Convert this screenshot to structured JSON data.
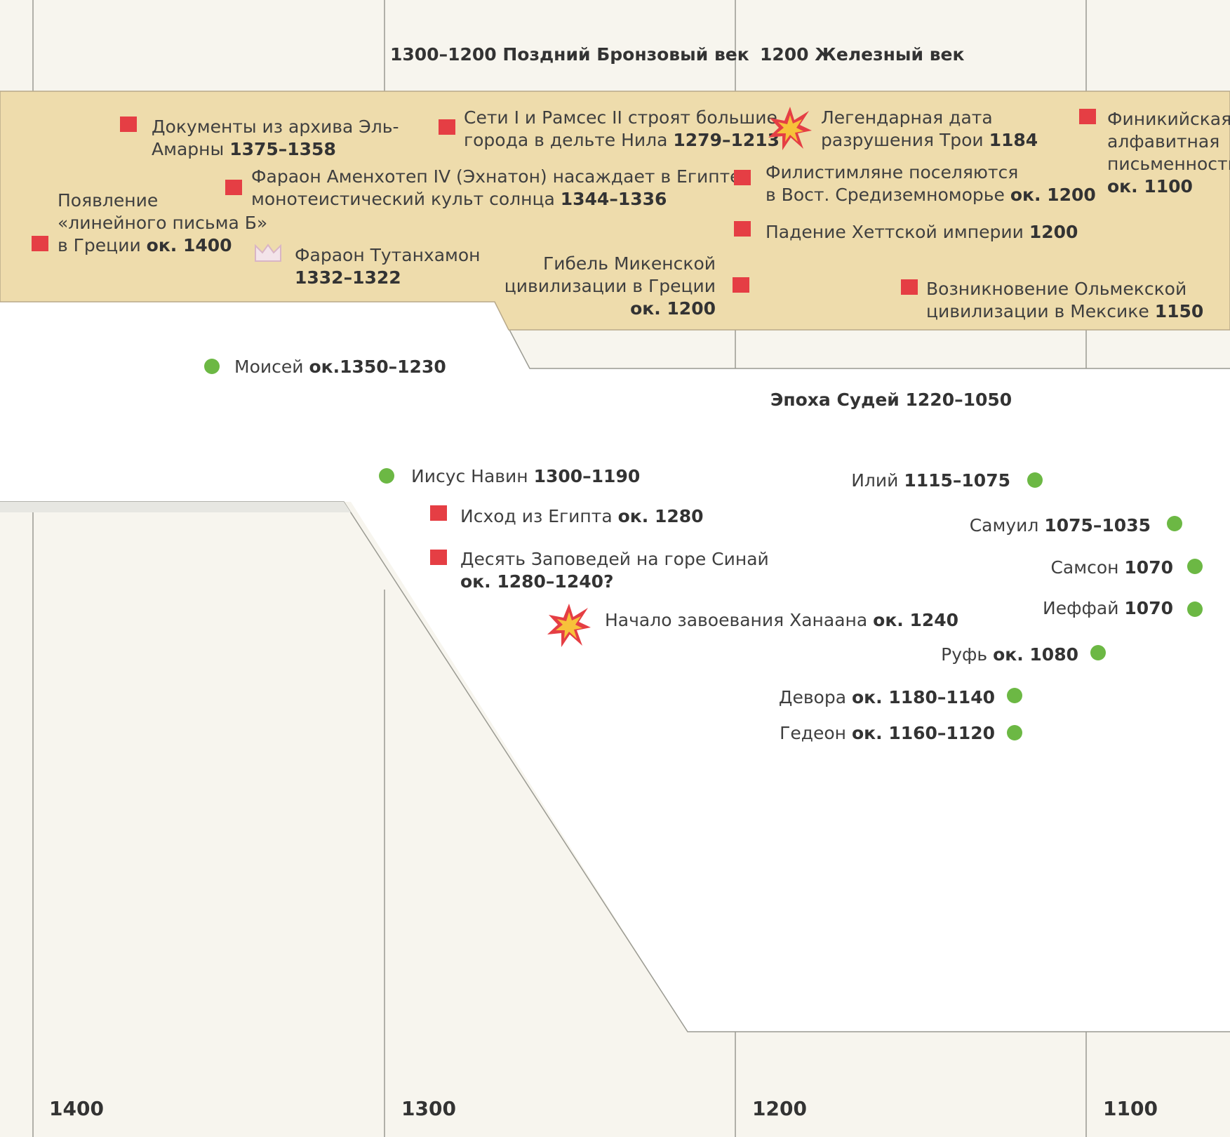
{
  "eras": {
    "late_bronze": "1300–1200 Поздний Бронзовый век",
    "iron": "1200 Железный век",
    "judges": "Эпоха Судей 1220–1050"
  },
  "axis_years": [
    "1400",
    "1300",
    "1200",
    "1100"
  ],
  "world_events": {
    "linear_b": {
      "line1": "Появление",
      "line2": "«линейного письма Б»",
      "line3": "в Греции ",
      "date": "ок. 1400"
    },
    "amarna": {
      "line1": "Документы из архива Эль-",
      "line2": "Амарны ",
      "date": "1375–1358"
    },
    "akhenaten": {
      "line1": "Фараон Аменхотеп IV (Эхнатон) насаждает в Египте",
      "line2": "монотеистический культ солнца ",
      "date": "1344–1336"
    },
    "tutankhamun": {
      "line1": "Фараон Тутанхамон",
      "date": "1332–1322"
    },
    "seti": {
      "line1": "Сети I и Рамсес II строят большие",
      "line2": "города в дельте Нила ",
      "date": "1279–1213"
    },
    "mycenae": {
      "line1": "Гибель Микенской",
      "line2": "цивилизации в Греции",
      "date": "ок. 1200"
    },
    "troy": {
      "line1": "Легендарная дата",
      "line2": "разрушения Трои ",
      "date": "1184"
    },
    "philistines": {
      "line1": "Филистимляне поселяются",
      "line2": "в Вост. Средиземноморье ",
      "date": "ок. 1200"
    },
    "hittite": {
      "line1": "Падение Хеттской империи ",
      "date": "1200"
    },
    "olmec": {
      "line1": "Возникновение Ольмекской",
      "line2": "цивилизации в Мексике ",
      "date": "1150"
    },
    "phoenician": {
      "line1": "Финикийская",
      "line2": "алфавитная",
      "line3": "письменность",
      "date": "ок. 1100"
    }
  },
  "biblical_events": {
    "moses": {
      "name": "Моисей ",
      "date": "ок.1350–1230"
    },
    "joshua": {
      "name": "Иисус Навин ",
      "date": "1300–1190"
    },
    "exodus": {
      "name": "Исход из Египта ",
      "date": "ок. 1280"
    },
    "commandments": {
      "line1": "Десять Заповедей на горе Синай",
      "date": "ок. 1280–1240?"
    },
    "canaan": {
      "name": "Начало завоевания Ханаана ",
      "date": "ок. 1240"
    }
  },
  "judges": {
    "eli": {
      "name": "Илий ",
      "date": "1115–1075"
    },
    "samuel": {
      "name": "Самуил ",
      "date": "1075–1035"
    },
    "samson": {
      "name": "Самсон ",
      "date": "1070"
    },
    "jephthah": {
      "name": "Иеффай ",
      "date": "1070"
    },
    "ruth": {
      "name": "Руфь ",
      "date": "ок. 1080"
    },
    "deborah": {
      "name": "Девора ",
      "date": "ок. 1180–1140"
    },
    "gideon": {
      "name": "Гедеон ",
      "date": "ок. 1160–1120"
    }
  },
  "colors": {
    "world_band": "#eedcac",
    "event_square": "#e53e44",
    "biblical_dot": "#6cb844",
    "page_bg": "#f7f5ee"
  }
}
